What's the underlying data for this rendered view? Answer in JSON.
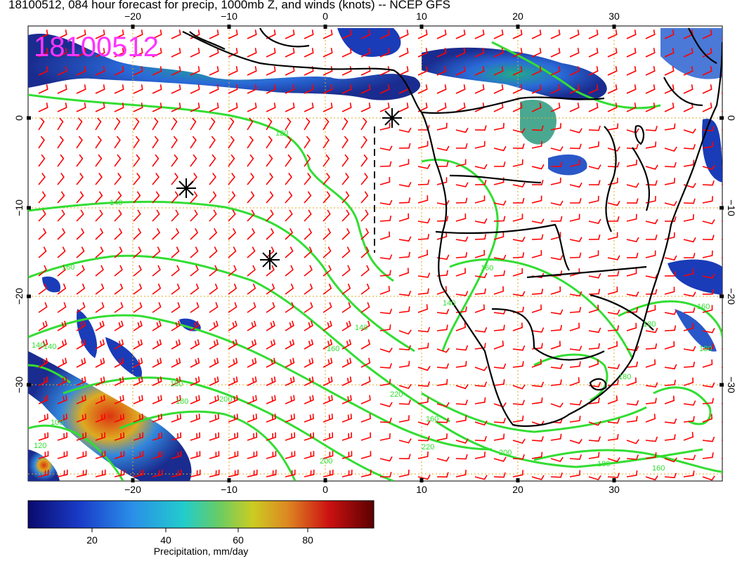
{
  "title": "18100512, 084 hour forecast for precip, 1000mb Z, and winds (knots) -- NCEP GFS",
  "stamp": "18100512",
  "lon_ticks": [
    "−20",
    "−10",
    "0",
    "10",
    "20",
    "30"
  ],
  "lat_ticks": [
    "0",
    "−10",
    "−20",
    "−30"
  ],
  "contour_labels": [
    "120",
    "140",
    "160",
    "140",
    "140",
    "160",
    "180",
    "200",
    "220",
    "200",
    "180",
    "160",
    "160",
    "180",
    "180",
    "160",
    "200",
    "220",
    "180",
    "140",
    "100",
    "120",
    "140",
    "160",
    "180"
  ],
  "colorbar": {
    "label": "Precipitation, mm/day",
    "ticks": [
      "20",
      "40",
      "60",
      "80"
    ]
  },
  "colors": {
    "precip_low": "#1a2c8f",
    "precip_high": "#c01010",
    "contours": "#33dd33",
    "wind_barbs": "#ff0000",
    "gridlines": "#ddaa22",
    "stamp": "#ff33ff"
  }
}
